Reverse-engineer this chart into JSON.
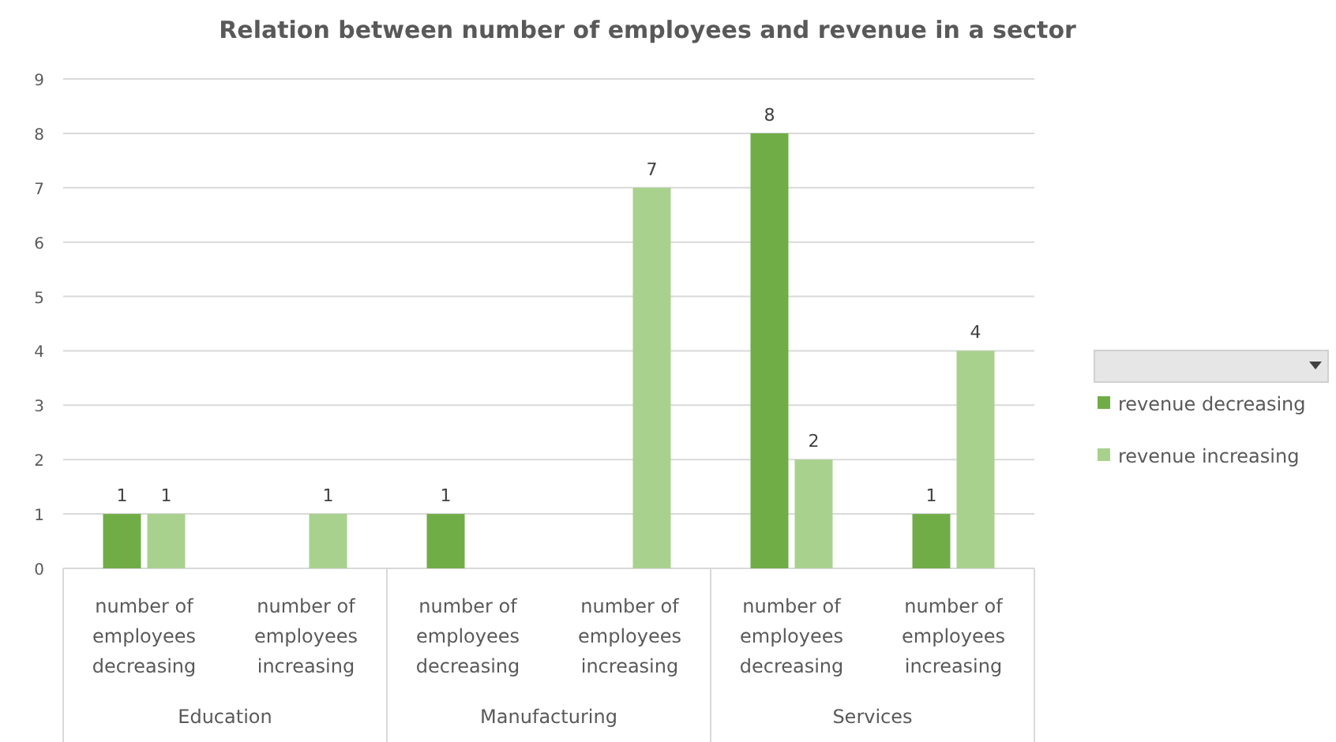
{
  "chart_data": {
    "type": "bar",
    "title": "Relation between number of employees and revenue in a sector",
    "categories": [
      "number of employees decreasing",
      "number of employees increasing",
      "number of employees decreasing",
      "number of employees increasing",
      "number of employees decreasing",
      "number of employees increasing"
    ],
    "series": [
      {
        "name": "revenue decreasing",
        "color": "#70ad47",
        "values": [
          1,
          null,
          1,
          null,
          8,
          1
        ]
      },
      {
        "name": "revenue increasing",
        "color": "#a9d18e",
        "values": [
          1,
          1,
          null,
          7,
          2,
          4
        ]
      }
    ],
    "annotations": [
      "Education",
      "Manufacturing",
      "Services"
    ],
    "ylim": [
      0,
      9
    ],
    "yticks": [
      0,
      1,
      2,
      3,
      4,
      5,
      6,
      7,
      8,
      9
    ],
    "grid": "y",
    "legend": "right",
    "data_labels": true
  }
}
